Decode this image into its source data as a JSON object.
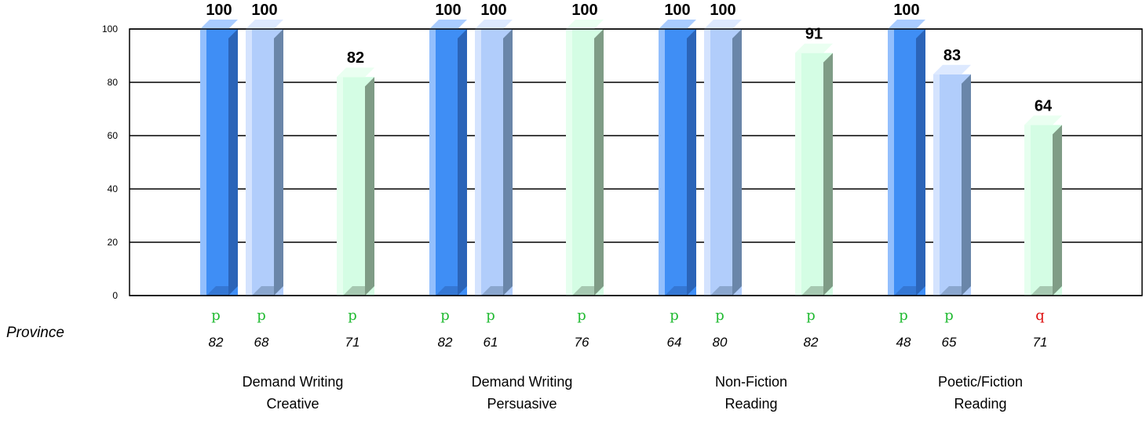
{
  "chart_data": {
    "type": "bar",
    "ylim": [
      0,
      100
    ],
    "yticks": [
      0,
      20,
      40,
      60,
      80,
      100
    ],
    "grid": true,
    "province_row_label": "Province",
    "categories": [
      {
        "line1": "Demand Writing",
        "line2": "Creative"
      },
      {
        "line1": "Demand Writing",
        "line2": "Persuasive"
      },
      {
        "line1": "Non-Fiction",
        "line2": "Reading"
      },
      {
        "line1": "Poetic/Fiction",
        "line2": "Reading"
      }
    ],
    "series": [
      {
        "values": [
          100,
          100,
          100,
          100
        ],
        "color": "#3f8ef5",
        "side": "#2b64b8",
        "top": "#a9ccff",
        "markers": [
          "p",
          "p",
          "p",
          "p"
        ],
        "province": [
          "82",
          "82",
          "64",
          "48"
        ]
      },
      {
        "values": [
          100,
          100,
          100,
          83
        ],
        "color": "#b1cdfb",
        "side": "#6a86a9",
        "top": "#dde9ff",
        "markers": [
          "p",
          "p",
          "p",
          "p"
        ],
        "province": [
          "68",
          "61",
          "80",
          "65"
        ]
      },
      {
        "values": [
          null,
          null,
          null,
          null
        ],
        "color": "#c9d9f5",
        "side": "#8090aa",
        "top": "#e9f0ff",
        "markers": [
          null,
          null,
          null,
          null
        ],
        "province": [
          null,
          null,
          null,
          null
        ]
      },
      {
        "values": [
          82,
          100,
          91,
          64
        ],
        "color": "#d4fde4",
        "side": "#7f9c86",
        "top": "#eafff1",
        "markers": [
          "p",
          "p",
          "p",
          "q"
        ],
        "province": [
          "71",
          "76",
          "82",
          "71"
        ]
      }
    ],
    "marker_colors": {
      "p": "#22bb33",
      "q": "#dd1111"
    }
  }
}
